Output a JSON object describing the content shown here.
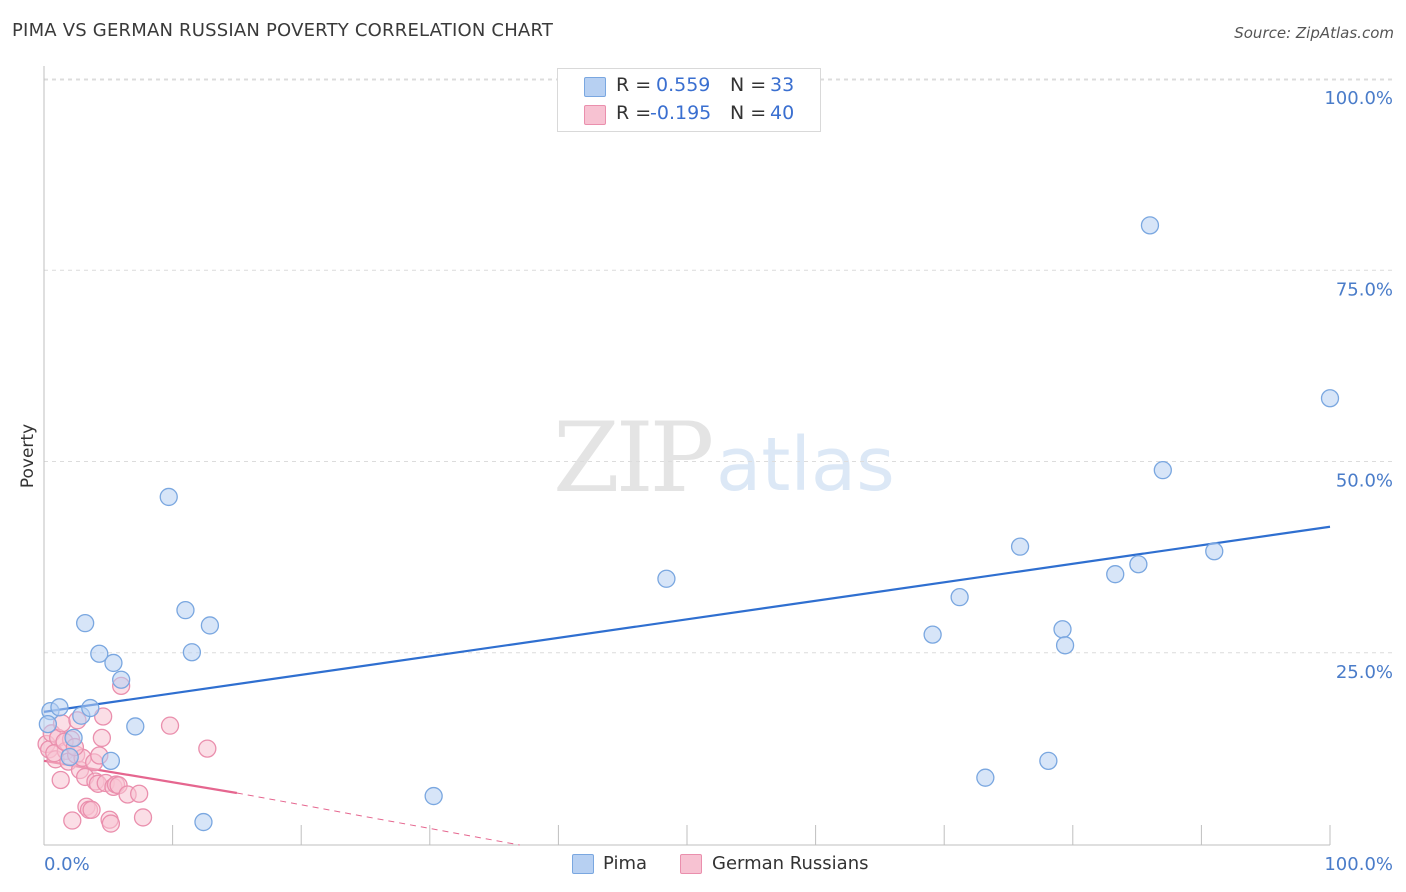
{
  "header": {
    "title": "PIMA VS GERMAN RUSSIAN POVERTY CORRELATION CHART",
    "source": "Source: ZipAtlas.com"
  },
  "watermark": {
    "zip": "ZIP",
    "atlas": "atlas"
  },
  "legend": {
    "rows": [
      {
        "r_label": "R =",
        "r_value": "0.559",
        "n_label": "N =",
        "n_value": "33"
      },
      {
        "r_label": "R =",
        "r_value": "-0.195",
        "n_label": "N =",
        "n_value": "40"
      }
    ]
  },
  "bottom_legend": {
    "series1": "Pima",
    "series2": "German Russians"
  },
  "colors": {
    "pima_fill": "#b7d0f2",
    "pima_stroke": "#7aa7e0",
    "pima_line": "#2f6fd0",
    "gr_fill": "#f7c2d2",
    "gr_stroke": "#ea8fad",
    "gr_line": "#e5668f",
    "tick_text": "#4a7cc9",
    "grid": "#dcdcdc"
  },
  "chart_data": {
    "type": "scatter",
    "title": "PIMA VS GERMAN RUSSIAN POVERTY CORRELATION CHART",
    "xlabel": "",
    "ylabel": "Poverty",
    "xlim": [
      0,
      100
    ],
    "ylim": [
      0,
      100
    ],
    "x_tick_labels": [
      "0.0%",
      "100.0%"
    ],
    "y_tick_labels": [
      "100.0%",
      "75.0%",
      "50.0%",
      "25.0%"
    ],
    "y_ticks": [
      100,
      75,
      50,
      25
    ],
    "grid": true,
    "legend_placement": "top-center",
    "series": [
      {
        "name": "Pima",
        "r": 0.559,
        "n": 33,
        "points": [
          [
            0.5,
            17.5
          ],
          [
            1.2,
            18.0
          ],
          [
            2.3,
            14.0
          ],
          [
            2.0,
            11.5
          ],
          [
            2.9,
            16.9
          ],
          [
            3.2,
            29.0
          ],
          [
            3.6,
            17.9
          ],
          [
            4.3,
            25.0
          ],
          [
            5.4,
            23.8
          ],
          [
            6.0,
            21.6
          ],
          [
            7.1,
            15.5
          ],
          [
            5.2,
            11.0
          ],
          [
            9.7,
            45.5
          ],
          [
            11.0,
            30.7
          ],
          [
            11.5,
            25.2
          ],
          [
            12.9,
            28.7
          ],
          [
            12.4,
            3.0
          ],
          [
            30.3,
            6.4
          ],
          [
            48.4,
            34.8
          ],
          [
            69.1,
            27.5
          ],
          [
            71.2,
            32.4
          ],
          [
            73.2,
            8.8
          ],
          [
            75.9,
            39.0
          ],
          [
            78.1,
            11.0
          ],
          [
            79.2,
            28.2
          ],
          [
            79.4,
            26.1
          ],
          [
            83.3,
            35.4
          ],
          [
            85.1,
            36.7
          ],
          [
            86.0,
            81.0
          ],
          [
            87.0,
            49.0
          ],
          [
            91.0,
            38.4
          ],
          [
            100.0,
            58.4
          ],
          [
            0.3,
            15.8
          ]
        ]
      },
      {
        "name": "German Russians",
        "points": [
          [
            0.2,
            13.2
          ],
          [
            0.4,
            12.5
          ],
          [
            0.6,
            14.6
          ],
          [
            0.9,
            11.2
          ],
          [
            1.1,
            14.0
          ],
          [
            1.3,
            8.5
          ],
          [
            1.4,
            15.9
          ],
          [
            1.7,
            12.3
          ],
          [
            1.9,
            10.9
          ],
          [
            2.1,
            13.8
          ],
          [
            2.2,
            3.2
          ],
          [
            2.5,
            11.8
          ],
          [
            2.6,
            16.3
          ],
          [
            2.8,
            9.8
          ],
          [
            3.0,
            11.4
          ],
          [
            3.2,
            8.9
          ],
          [
            3.3,
            5.0
          ],
          [
            3.5,
            4.6
          ],
          [
            3.7,
            4.6
          ],
          [
            3.9,
            10.8
          ],
          [
            4.0,
            8.3
          ],
          [
            4.2,
            8.0
          ],
          [
            4.3,
            11.7
          ],
          [
            4.5,
            14.0
          ],
          [
            4.6,
            16.8
          ],
          [
            4.8,
            8.1
          ],
          [
            5.1,
            3.3
          ],
          [
            5.2,
            2.8
          ],
          [
            5.4,
            7.6
          ],
          [
            5.6,
            7.9
          ],
          [
            5.8,
            7.8
          ],
          [
            6.0,
            20.8
          ],
          [
            6.5,
            6.6
          ],
          [
            7.4,
            6.7
          ],
          [
            7.7,
            3.6
          ],
          [
            9.8,
            15.6
          ],
          [
            12.7,
            12.6
          ],
          [
            0.8,
            12.0
          ],
          [
            1.6,
            13.5
          ],
          [
            2.4,
            12.8
          ]
        ]
      }
    ],
    "trendlines": [
      {
        "series": "Pima",
        "x": [
          0,
          100
        ],
        "y": [
          17.4,
          41.6
        ],
        "style": "solid"
      },
      {
        "series": "German Russians",
        "x": [
          0,
          15
        ],
        "y": [
          11.0,
          6.8
        ],
        "style": "solid"
      },
      {
        "series": "German Russians",
        "x": [
          15,
          37
        ],
        "y": [
          6.8,
          0.0
        ],
        "style": "dashed"
      }
    ]
  }
}
